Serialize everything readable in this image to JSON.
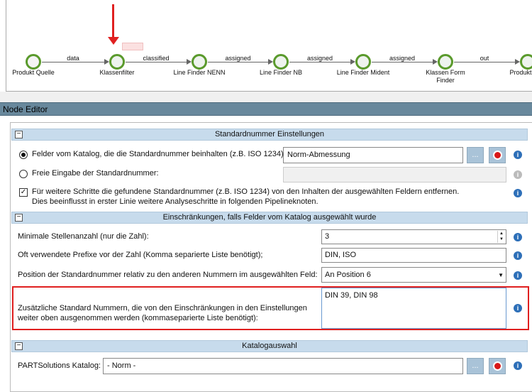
{
  "pipeline": {
    "nodes": [
      "Produkt Quelle",
      "Klassenfilter",
      "Line Finder NENN",
      "Line Finder NB",
      "Line Finder Mident",
      "Klassen Form Finder",
      "Produkt Map"
    ],
    "edges": [
      "data",
      "classified",
      "assigned",
      "assigned",
      "assigned",
      "out"
    ],
    "selected_node": "Klassenfilter",
    "arrow_color": "#e02020"
  },
  "node_editor": {
    "title": "Node Editor"
  },
  "section1": {
    "title": "Standardnummer Einstellungen",
    "radio_catalog_label": "Felder vom Katalog, die die Standardnummer beinhalten (z.B. ISO 1234)",
    "radio_catalog_value": "Norm-Abmessung",
    "radio_free_label": "Freie Eingabe der Standardnummer:",
    "radio_free_value": "",
    "browse_label": "...",
    "checkbox_line1": "Für weitere Schritte die gefundene Standardnummer (z.B. ISO 1234) von den Inhalten der ausgewählten Feldern entfernen.",
    "checkbox_line2": "Dies beeinflusst in erster Linie weitere Analyseschritte in folgenden Pipelineknoten.",
    "checkbox_checked": true
  },
  "section2": {
    "title": "Einschränkungen, falls Felder vom Katalog ausgewählt wurde",
    "min_digits_label": "Minimale Stellenanzahl (nur die Zahl):",
    "min_digits_value": "3",
    "prefixes_label": "Oft verwendete Prefixe vor der Zahl (Komma separierte Liste benötigt);",
    "prefixes_value": "DIN, ISO",
    "position_label": "Position der Standardnummer relativ zu den anderen Nummern im ausgewählten Feld:",
    "position_value": "An Position 6",
    "extra_label_line1": "Zusätzliche Standard Nummern, die von den Einschränkungen in den Einstellungen",
    "extra_label_line2": "weiter oben ausgenommen werden (kommaseparierte Liste benötigt):",
    "extra_value": "DIN 39, DIN 98",
    "highlight_color": "#e02020"
  },
  "section3": {
    "title": "Katalogauswahl",
    "catalog_label": "PARTSolutions Katalog:",
    "catalog_value": "- Norm -",
    "browse_label": "..."
  },
  "info_symbol": "i",
  "collapse_symbol": "−"
}
